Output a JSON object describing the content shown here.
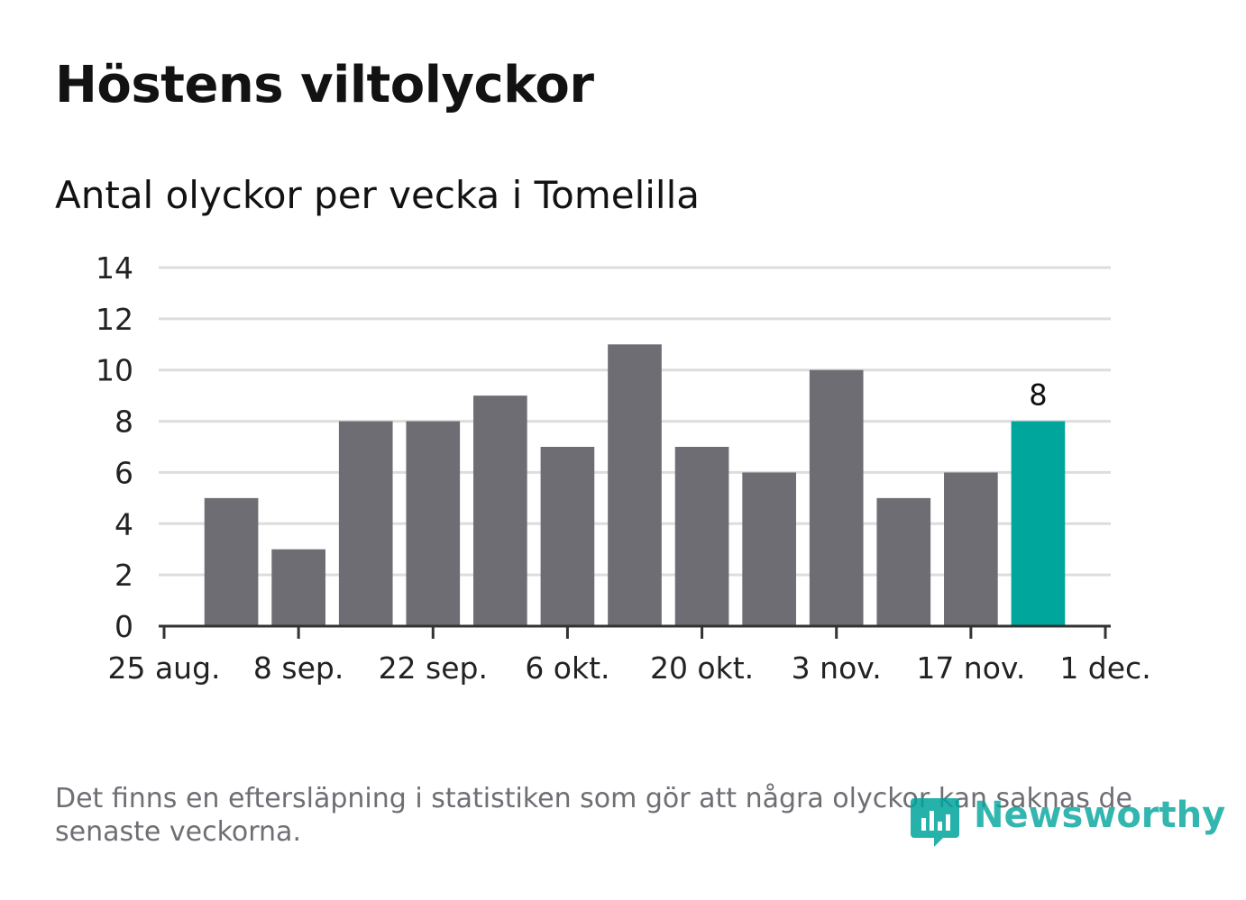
{
  "header": {
    "title": "Höstens viltolyckor",
    "subtitle": "Antal olyckor per vecka i Tomelilla"
  },
  "footer": {
    "note": "Det finns en eftersläpning i statistiken som gör att några olyckor kan saknas de senaste veckorna.",
    "brand": "Newsworthy"
  },
  "colors": {
    "bar": "#6e6d73",
    "highlight": "#00a59c",
    "grid": "#dddddd",
    "axis": "#333333"
  },
  "chart_data": {
    "type": "bar",
    "title": "Höstens viltolyckor",
    "subtitle": "Antal olyckor per vecka i Tomelilla",
    "xlabel": "",
    "ylabel": "",
    "x_ticks": [
      "25 aug.",
      "8 sep.",
      "22 sep.",
      "6 okt.",
      "20 okt.",
      "3 nov.",
      "17 nov.",
      "1 dec."
    ],
    "y_ticks": [
      0,
      2,
      4,
      6,
      8,
      10,
      12,
      14
    ],
    "ylim": [
      0,
      14
    ],
    "grid": true,
    "weeks_span": 14,
    "values": [
      5,
      3,
      8,
      8,
      9,
      7,
      11,
      7,
      6,
      10,
      5,
      6,
      8
    ],
    "highlight_index": 12,
    "data_labels": [
      {
        "index": 12,
        "text": "8"
      }
    ]
  }
}
